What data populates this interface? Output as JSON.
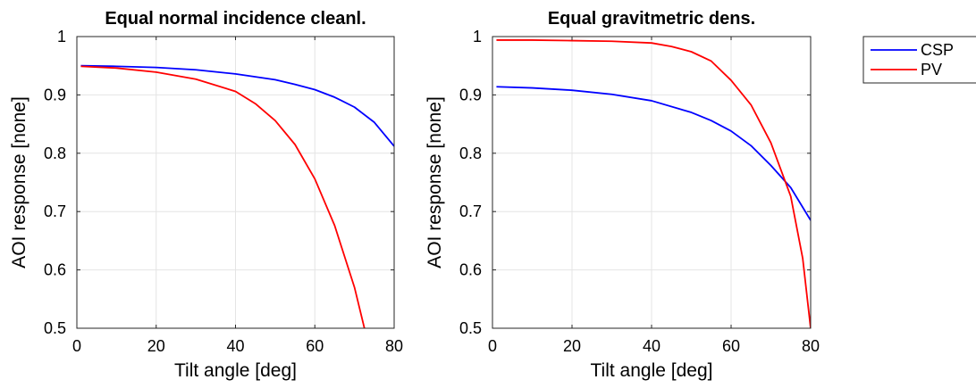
{
  "chart_data": [
    {
      "type": "line",
      "title": "Equal normal incidence cleanl.",
      "xlabel": "Tilt angle [deg]",
      "ylabel": "AOI response [none]",
      "xlim": [
        0,
        80
      ],
      "ylim": [
        0.5,
        1
      ],
      "xticks": [
        "0",
        "20",
        "40",
        "60",
        "80"
      ],
      "yticks": [
        "0.5",
        "0.6",
        "0.7",
        "0.8",
        "0.9",
        "1"
      ],
      "grid": true,
      "series": [
        {
          "name": "CSP",
          "color": "#0000ff",
          "x": [
            1,
            10,
            20,
            30,
            40,
            50,
            55,
            60,
            65,
            70,
            75,
            80
          ],
          "y": [
            0.95,
            0.949,
            0.947,
            0.943,
            0.936,
            0.926,
            0.918,
            0.909,
            0.896,
            0.879,
            0.853,
            0.812
          ]
        },
        {
          "name": "PV",
          "color": "#ff0000",
          "x": [
            1,
            10,
            20,
            30,
            40,
            45,
            50,
            55,
            60,
            65,
            70,
            72.5
          ],
          "y": [
            0.949,
            0.946,
            0.939,
            0.927,
            0.906,
            0.885,
            0.856,
            0.815,
            0.756,
            0.676,
            0.57,
            0.5
          ]
        }
      ]
    },
    {
      "type": "line",
      "title": "Equal gravitmetric dens.",
      "xlabel": "Tilt angle [deg]",
      "ylabel": "AOI response [none]",
      "xlim": [
        0,
        80
      ],
      "ylim": [
        0.5,
        1
      ],
      "xticks": [
        "0",
        "20",
        "40",
        "60",
        "80"
      ],
      "yticks": [
        "0.5",
        "0.6",
        "0.7",
        "0.8",
        "0.9",
        "1"
      ],
      "grid": true,
      "legend": {
        "placement": "outside-top-right",
        "entries": [
          "CSP",
          "PV"
        ]
      },
      "series": [
        {
          "name": "CSP",
          "color": "#0000ff",
          "x": [
            1,
            10,
            20,
            30,
            40,
            50,
            55,
            60,
            65,
            70,
            75,
            80
          ],
          "y": [
            0.914,
            0.912,
            0.908,
            0.901,
            0.89,
            0.87,
            0.856,
            0.838,
            0.813,
            0.779,
            0.741,
            0.685
          ]
        },
        {
          "name": "PV",
          "color": "#ff0000",
          "x": [
            1,
            10,
            20,
            30,
            40,
            45,
            50,
            55,
            60,
            65,
            70,
            75,
            78,
            80
          ],
          "y": [
            0.994,
            0.994,
            0.993,
            0.992,
            0.989,
            0.983,
            0.974,
            0.958,
            0.925,
            0.883,
            0.818,
            0.726,
            0.62,
            0.5
          ]
        }
      ]
    }
  ]
}
